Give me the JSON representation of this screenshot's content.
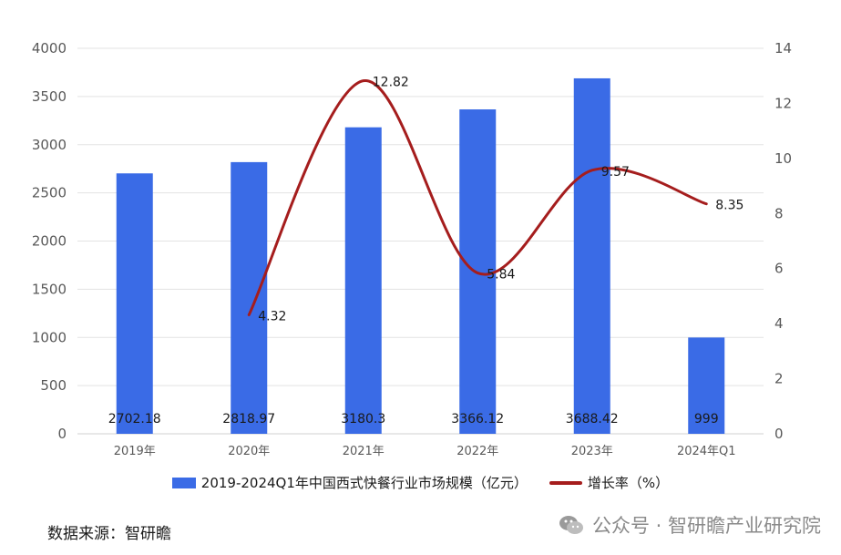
{
  "chart_data": {
    "type": "bar",
    "categories": [
      "2019年",
      "2020年",
      "2021年",
      "2022年",
      "2023年",
      "2024年Q1"
    ],
    "series": [
      {
        "name": "2019-2024Q1年中国西式快餐行业市场规模（亿元）",
        "type": "bar",
        "axis": "left",
        "values": [
          2702.18,
          2818.97,
          3180.3,
          3366.12,
          3688.42,
          999
        ],
        "labels": [
          "2702.18",
          "2818.97",
          "3180.3",
          "3366.12",
          "3688.42",
          "999"
        ],
        "color": "#3a6be6"
      },
      {
        "name": "增长率（%）",
        "type": "line",
        "axis": "right",
        "values": [
          null,
          4.32,
          12.82,
          5.84,
          9.57,
          8.35
        ],
        "labels": [
          "",
          "4.32",
          "12.82",
          "5.84",
          "9.57",
          "8.35"
        ],
        "color": "#a51d1d"
      }
    ],
    "y_left": {
      "min": 0,
      "max": 4000,
      "ticks": [
        "0",
        "500",
        "1000",
        "1500",
        "2000",
        "2500",
        "3000",
        "3500",
        "4000"
      ]
    },
    "y_right": {
      "min": 0,
      "max": 14,
      "ticks": [
        "0",
        "2",
        "4",
        "6",
        "8",
        "10",
        "12",
        "14"
      ]
    },
    "grid": true,
    "legend_position": "bottom"
  },
  "legend": {
    "bar_label": "2019-2024Q1年中国西式快餐行业市场规模（亿元）",
    "line_label": "增长率（%）"
  },
  "source_text": "数据来源：智研瞻",
  "watermark_text": "公众号 · 智研瞻产业研究院"
}
